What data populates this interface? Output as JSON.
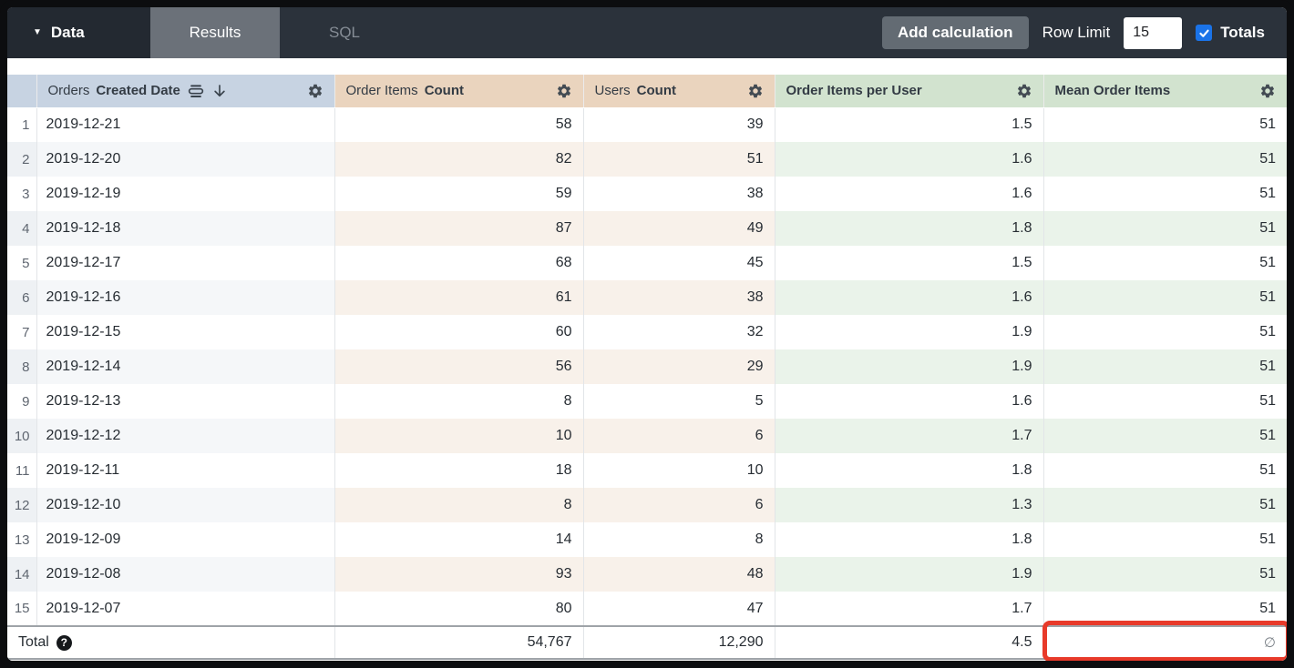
{
  "topbar": {
    "data_label": "Data",
    "tabs": [
      {
        "label": "Results",
        "active": true
      },
      {
        "label": "SQL",
        "active": false
      }
    ],
    "add_calculation_label": "Add calculation",
    "row_limit_label": "Row Limit",
    "row_limit_value": "15",
    "totals_label": "Totals",
    "totals_checked": true
  },
  "icons": {
    "caret": "▼",
    "sort_desc": "↓",
    "fill": "fill-lines",
    "gear": "settings-gear",
    "help": "?",
    "check": "✓",
    "null_symbol": "∅"
  },
  "colors": {
    "dimension_header": "#c7d3e2",
    "measure_header": "#ead4be",
    "calculation_header": "#d2e3cf",
    "checkbox_blue": "#1a73e8",
    "annotation_red": "#e83a2a",
    "topbar_dark": "#2b323b",
    "active_tab_gray": "#6b7179"
  },
  "table": {
    "columns": [
      {
        "name": "orders_created_date",
        "label_light": "Orders",
        "label_bold": "Created Date",
        "group": "dim",
        "has_fill_icon": true,
        "sorted_desc": true
      },
      {
        "name": "order_items_count",
        "label_light": "Order Items",
        "label_bold": "Count",
        "group": "measure"
      },
      {
        "name": "users_count",
        "label_light": "Users",
        "label_bold": "Count",
        "group": "measure"
      },
      {
        "name": "order_items_per_user",
        "label_light": "",
        "label_bold": "Order Items per User",
        "group": "calc"
      },
      {
        "name": "mean_order_items",
        "label_light": "",
        "label_bold": "Mean Order Items",
        "group": "calc"
      }
    ],
    "rows": [
      {
        "index": 1,
        "date": "2019-12-21",
        "order_items_count": "58",
        "users_count": "39",
        "order_items_per_user": "1.5",
        "mean_order_items": "51"
      },
      {
        "index": 2,
        "date": "2019-12-20",
        "order_items_count": "82",
        "users_count": "51",
        "order_items_per_user": "1.6",
        "mean_order_items": "51"
      },
      {
        "index": 3,
        "date": "2019-12-19",
        "order_items_count": "59",
        "users_count": "38",
        "order_items_per_user": "1.6",
        "mean_order_items": "51"
      },
      {
        "index": 4,
        "date": "2019-12-18",
        "order_items_count": "87",
        "users_count": "49",
        "order_items_per_user": "1.8",
        "mean_order_items": "51"
      },
      {
        "index": 5,
        "date": "2019-12-17",
        "order_items_count": "68",
        "users_count": "45",
        "order_items_per_user": "1.5",
        "mean_order_items": "51"
      },
      {
        "index": 6,
        "date": "2019-12-16",
        "order_items_count": "61",
        "users_count": "38",
        "order_items_per_user": "1.6",
        "mean_order_items": "51"
      },
      {
        "index": 7,
        "date": "2019-12-15",
        "order_items_count": "60",
        "users_count": "32",
        "order_items_per_user": "1.9",
        "mean_order_items": "51"
      },
      {
        "index": 8,
        "date": "2019-12-14",
        "order_items_count": "56",
        "users_count": "29",
        "order_items_per_user": "1.9",
        "mean_order_items": "51"
      },
      {
        "index": 9,
        "date": "2019-12-13",
        "order_items_count": "8",
        "users_count": "5",
        "order_items_per_user": "1.6",
        "mean_order_items": "51"
      },
      {
        "index": 10,
        "date": "2019-12-12",
        "order_items_count": "10",
        "users_count": "6",
        "order_items_per_user": "1.7",
        "mean_order_items": "51"
      },
      {
        "index": 11,
        "date": "2019-12-11",
        "order_items_count": "18",
        "users_count": "10",
        "order_items_per_user": "1.8",
        "mean_order_items": "51"
      },
      {
        "index": 12,
        "date": "2019-12-10",
        "order_items_count": "8",
        "users_count": "6",
        "order_items_per_user": "1.3",
        "mean_order_items": "51"
      },
      {
        "index": 13,
        "date": "2019-12-09",
        "order_items_count": "14",
        "users_count": "8",
        "order_items_per_user": "1.8",
        "mean_order_items": "51"
      },
      {
        "index": 14,
        "date": "2019-12-08",
        "order_items_count": "93",
        "users_count": "48",
        "order_items_per_user": "1.9",
        "mean_order_items": "51"
      },
      {
        "index": 15,
        "date": "2019-12-07",
        "order_items_count": "80",
        "users_count": "47",
        "order_items_per_user": "1.7",
        "mean_order_items": "51"
      }
    ],
    "total": {
      "label": "Total",
      "order_items_count": "54,767",
      "users_count": "12,290",
      "order_items_per_user": "4.5",
      "mean_order_items": "∅",
      "highlighted_cell": "mean_order_items"
    }
  }
}
